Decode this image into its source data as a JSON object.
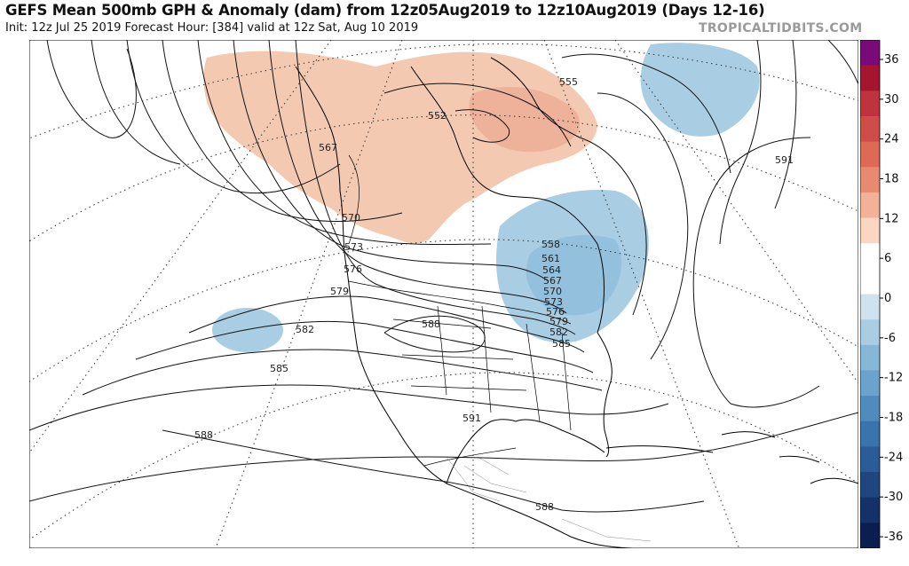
{
  "header": {
    "title": "GEFS Mean 500mb GPH & Anomaly (dam) from 12z05Aug2019 to 12z10Aug2019 (Days 12-16)",
    "subtitle": "Init: 12z Jul 25 2019   Forecast Hour: [384]   valid at 12z Sat, Aug 10 2019",
    "credit": "TROPICALTIDBITS.COM"
  },
  "map": {
    "region": "North America polar stereographic",
    "contour_labels": [
      "555",
      "552",
      "567",
      "570",
      "573",
      "576",
      "579",
      "582",
      "585",
      "588",
      "591",
      "558",
      "561",
      "564",
      "567",
      "570",
      "573",
      "576",
      "579",
      "582",
      "585",
      "588",
      "591",
      "588",
      "588"
    ],
    "colors": {
      "positive_anomaly": "#f3c9b2",
      "positive_strong": "#eaa88e",
      "negative_anomaly": "#a9cde2",
      "negative_strong": "#7fb0d3"
    }
  },
  "colorbar": {
    "ticks": [
      "36",
      "30",
      "24",
      "18",
      "12",
      "6",
      "0",
      "-6",
      "-12",
      "-18",
      "-24",
      "-30",
      "-36"
    ],
    "colors": [
      "#7a0a7a",
      "#a51530",
      "#c0323d",
      "#cf4d48",
      "#de6a55",
      "#e88a6f",
      "#f3b195",
      "#fbd6c1",
      "#ffffff",
      "#ffffff",
      "#cfe3ef",
      "#a9cde2",
      "#85b8d8",
      "#6aa3cc",
      "#4f8cbe",
      "#3a74ad",
      "#2a5c98",
      "#1e467f",
      "#143268",
      "#0a1f4f"
    ]
  }
}
